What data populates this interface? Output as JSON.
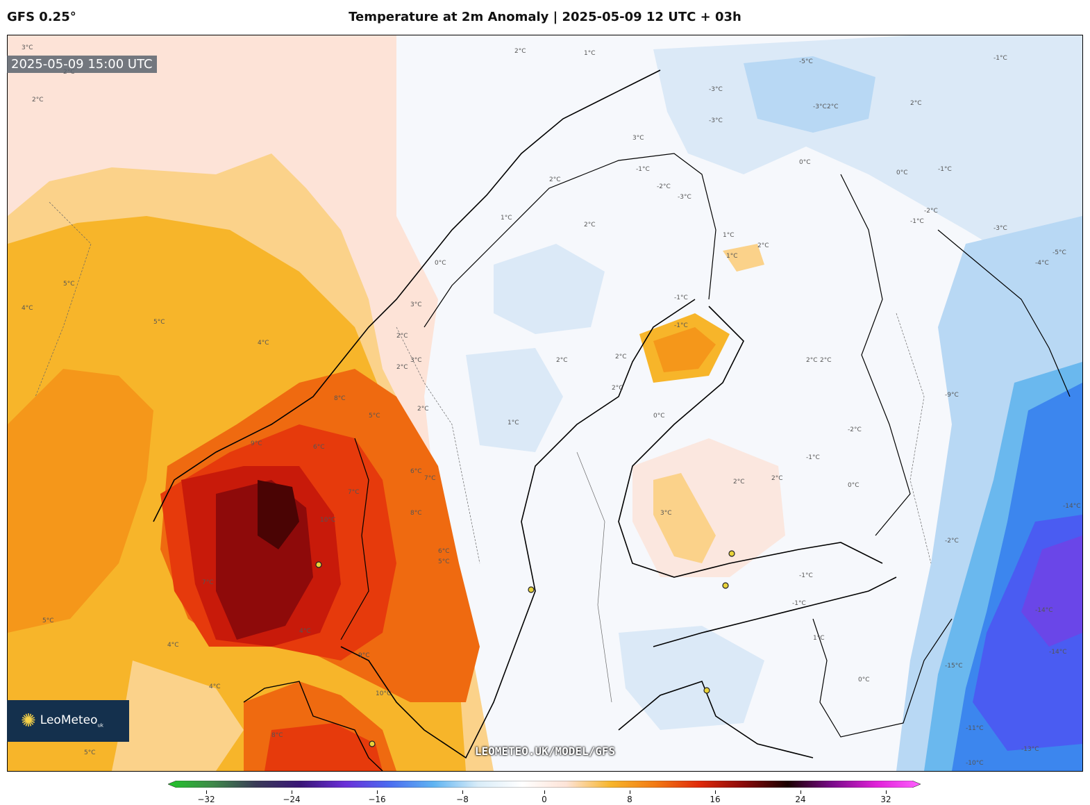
{
  "header": {
    "model": "GFS 0.25°",
    "title": "Temperature at 2m Anomaly | 2025-05-09 12 UTC + 03h"
  },
  "valid_time": "2025-05-09 15:00 UTC",
  "logo": {
    "name": "LeoMeteo",
    "suffix": "uk"
  },
  "watermark": "LEOMETEO.UK/MODEL/GFS",
  "colorbar": {
    "min": -32,
    "max": 32,
    "ticks": [
      "−32",
      "−24",
      "−16",
      "−8",
      "0",
      "8",
      "16",
      "24",
      "32"
    ],
    "stops": [
      "#22c42a",
      "#3f8a4a",
      "#3a3a58",
      "#3a1678",
      "#6a2fd8",
      "#4b6cf0",
      "#5fb4f2",
      "#d8ecf8",
      "#ffffff",
      "#fde3d7",
      "#f7b52a",
      "#f27a14",
      "#e02a0a",
      "#8a0a0a",
      "#1a0000",
      "#7a0a8a",
      "#e020d8",
      "#ff60ff"
    ],
    "colors": {
      "ocean_base": "#fde3d7",
      "warm_1": "#fbd28a",
      "warm_2": "#f7b52a",
      "warm_3": "#f5971a",
      "warm_4": "#ef6a10",
      "hot_1": "#e63a0c",
      "hot_2": "#c81a0a",
      "hot_3": "#8e0a0a",
      "hot_4": "#4a0404",
      "near_zero": "#f6f8fc",
      "cool_1": "#dbe9f7",
      "cool_2": "#b8d8f4",
      "cold_1": "#6ab8ee",
      "cold_2": "#3c86ee",
      "cold_3": "#4a5cf2",
      "cold_4": "#6a46e8"
    }
  },
  "contour_labels": [
    "3°C",
    "2°C",
    "2°C",
    "1°C",
    "-5°C",
    "-3°C",
    "-3°C",
    "-3°C",
    "2°C",
    "-1°C",
    "2°C",
    "3°C",
    "2°C",
    "0°C",
    "0°C",
    "-1°C",
    "-1°C",
    "-2°C",
    "-3°C",
    "1°C",
    "-1°C",
    "-2°C",
    "-3°C",
    "1°C",
    "2°C",
    "0°C",
    "-4°C",
    "-5°C",
    "4°C",
    "5°C",
    "5°C",
    "4°C",
    "2°C",
    "3°C",
    "2°C",
    "2°C",
    "3°C",
    "2°C",
    "8°C",
    "7°C",
    "9°C",
    "6°C",
    "5°C",
    "6°C",
    "10°C",
    "8°C",
    "7°C",
    "6°C",
    "5°C",
    "7°C",
    "5°C",
    "4°C",
    "4°C",
    "4°C",
    "5°C",
    "8°C",
    "10°C",
    "9°C",
    "1°C",
    "2°C",
    "2°C",
    "-1°C",
    "2°C",
    "1°C",
    "2°C",
    "3°C",
    "2°C",
    "2°C",
    "-1°C",
    "0°C",
    "-1°C",
    "2°C",
    "2°C",
    "-2°C",
    "-1°C",
    "0°C",
    "-1°C",
    "1°C",
    "0°C",
    "-2°C",
    "-14°C",
    "-15°C",
    "-14°C",
    "-11°C",
    "-13°C",
    "-10°C",
    "-14°C",
    "-9°C"
  ],
  "cities": [
    "city-marker",
    "city-marker",
    "city-marker",
    "city-marker",
    "city-marker",
    "city-marker"
  ]
}
